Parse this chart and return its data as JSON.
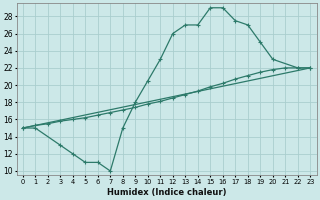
{
  "xlabel": "Humidex (Indice chaleur)",
  "background_color": "#cce8e8",
  "grid_color": "#aacece",
  "line_color": "#2d7a6a",
  "xlim": [
    -0.5,
    23.5
  ],
  "ylim": [
    9.5,
    29.5
  ],
  "xticks": [
    0,
    1,
    2,
    3,
    4,
    5,
    6,
    7,
    8,
    9,
    10,
    11,
    12,
    13,
    14,
    15,
    16,
    17,
    18,
    19,
    20,
    21,
    22,
    23
  ],
  "yticks": [
    10,
    12,
    14,
    16,
    18,
    20,
    22,
    24,
    26,
    28
  ],
  "curve1_x": [
    0,
    1,
    3,
    4,
    5,
    6,
    7,
    8,
    9,
    10,
    11,
    12,
    13,
    14,
    15,
    16,
    17,
    18,
    19,
    20,
    22,
    23
  ],
  "curve1_y": [
    15,
    15,
    13,
    12,
    11,
    11,
    10,
    15,
    18,
    20.5,
    23,
    26,
    27,
    27,
    29,
    29,
    27.5,
    27,
    25,
    23,
    22,
    22
  ],
  "curve2_x": [
    0,
    23
  ],
  "curve2_y": [
    15,
    22
  ],
  "curve3_x": [
    0,
    1,
    2,
    3,
    4,
    5,
    6,
    7,
    8,
    9,
    10,
    11,
    12,
    13,
    14,
    15,
    16,
    17,
    18,
    19,
    20,
    21,
    22,
    23
  ],
  "curve3_y": [
    15,
    15.3,
    15.5,
    15.8,
    16,
    16.2,
    16.5,
    16.8,
    17.1,
    17.4,
    17.8,
    18.1,
    18.5,
    18.9,
    19.3,
    19.8,
    20.2,
    20.7,
    21.1,
    21.5,
    21.8,
    22,
    22,
    22
  ]
}
